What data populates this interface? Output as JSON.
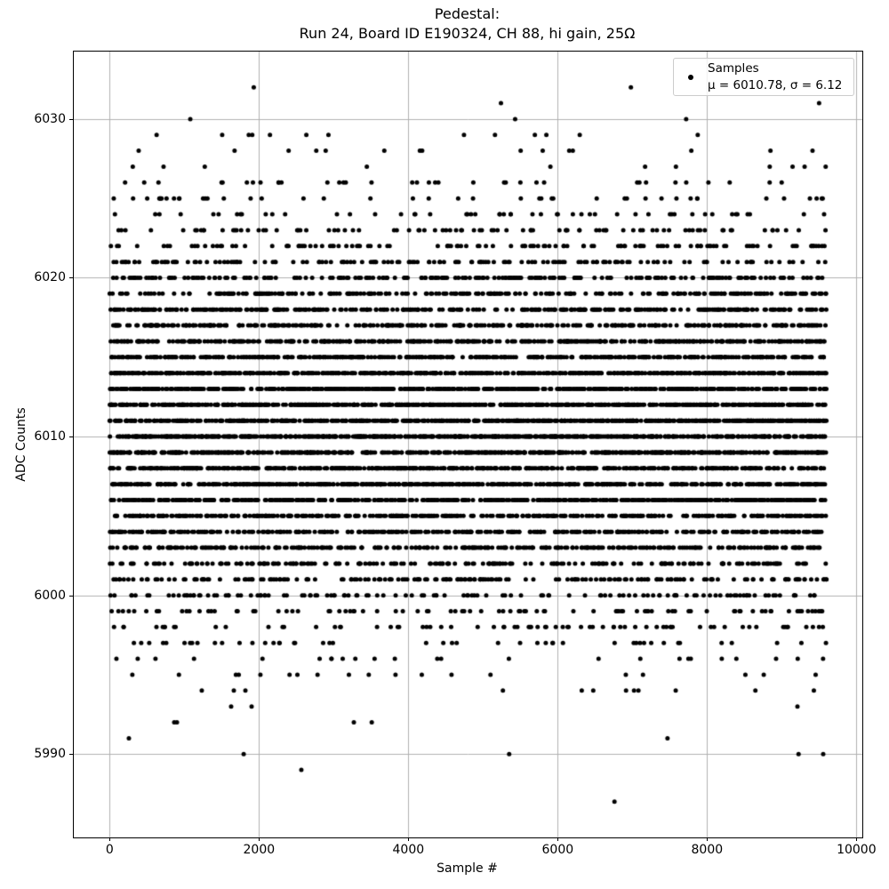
{
  "figure": {
    "title_line1": "Pedestal:",
    "title_line2": "Run 24, Board ID E190324, CH 88, hi gain, 25Ω",
    "xlabel": "Sample #",
    "ylabel": "ADC Counts",
    "background_color": "#ffffff"
  },
  "legend": {
    "marker": "black-dot",
    "line1": "Samples",
    "line2": "μ = 6010.78, σ = 6.12",
    "position": "upper right"
  },
  "chart_data": {
    "type": "scatter",
    "title": "Pedestal:\nRun 24, Board ID E190324, CH 88, hi gain, 25Ω",
    "xlabel": "Sample #",
    "ylabel": "ADC Counts",
    "series_name": "Samples",
    "n_points": 9600,
    "x_range": [
      0,
      9599
    ],
    "mean": 6010.78,
    "sigma": 6.12,
    "value_quantization": "integer ADC counts (one sample per x, y rounded to integers)",
    "observed_min": 5987,
    "observed_max": 6032,
    "xlim": [
      -480,
      10079
    ],
    "ylim": [
      5984.75,
      6034.25
    ],
    "xticks": [
      0,
      2000,
      4000,
      6000,
      8000,
      10000
    ],
    "yticks": [
      5990,
      6000,
      6010,
      6020,
      6030
    ],
    "grid": true,
    "grid_color": "#b0b0b0",
    "axes_edge_color": "#000000",
    "marker_color": "#000000",
    "marker_radius_px": 2.5,
    "legend_position": "upper right",
    "generator": {
      "note": "bulk of points drawn from N(mean, sigma) rounded to integers, clipped to bulk_value_range; explicit outliers listed in notable_points",
      "seed": 20240,
      "bulk_value_range": [
        5995,
        6028
      ]
    },
    "notable_points": {
      "6032": [
        1930,
        6980
      ],
      "6031": [
        5240,
        9500
      ],
      "6030": [
        1080,
        5430,
        7720
      ],
      "6029": [
        629,
        1507,
        1863,
        1910,
        2147,
        2634,
        2930,
        4745,
        5160,
        5694,
        5848,
        6295,
        7875
      ],
      "5994": [
        1234,
        1663,
        1818,
        5266,
        6322,
        6476,
        6915,
        7022,
        7081,
        7580,
        8647,
        9430
      ],
      "5993": [
        1627,
        1901,
        9210
      ],
      "5992": [
        865,
        901,
        3270,
        3510
      ],
      "5991": [
        258,
        7470
      ],
      "5990": [
        1795,
        5350,
        9225,
        9555
      ],
      "5989": [
        2567
      ],
      "5987": [
        6760
      ]
    }
  }
}
